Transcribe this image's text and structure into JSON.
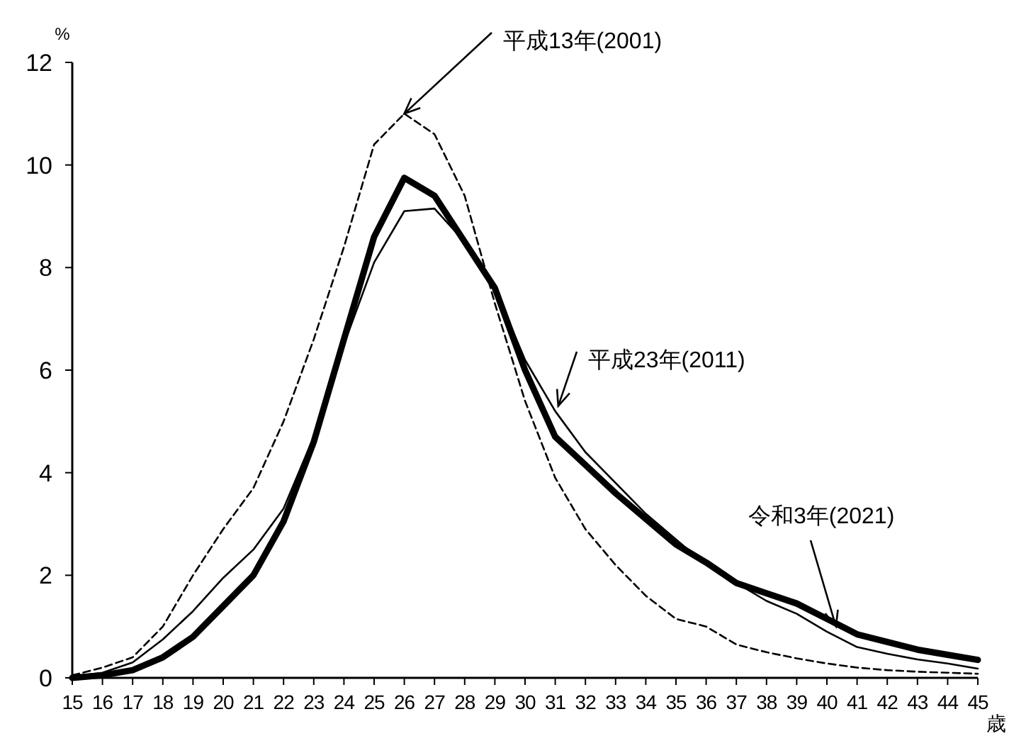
{
  "chart_data": {
    "type": "line",
    "ylabel": "%",
    "xlabel": "歳",
    "xlim": [
      15,
      45
    ],
    "ylim": [
      0,
      12
    ],
    "xticks": [
      15,
      16,
      17,
      18,
      19,
      20,
      21,
      22,
      23,
      24,
      25,
      26,
      27,
      28,
      29,
      30,
      31,
      32,
      33,
      34,
      35,
      36,
      37,
      38,
      39,
      40,
      41,
      42,
      43,
      44,
      45
    ],
    "yticks": [
      0,
      2,
      4,
      6,
      8,
      10,
      12
    ],
    "x": [
      15,
      16,
      17,
      18,
      19,
      20,
      21,
      22,
      23,
      24,
      25,
      26,
      27,
      28,
      29,
      30,
      31,
      32,
      33,
      34,
      35,
      36,
      37,
      38,
      39,
      40,
      41,
      42,
      43,
      44,
      45
    ],
    "series": [
      {
        "color": "#000000",
        "line_style": "dashed",
        "values": [
          0.05,
          0.2,
          0.4,
          1.0,
          2.0,
          2.9,
          3.7,
          5.0,
          6.6,
          8.4,
          10.4,
          11.0,
          10.6,
          9.4,
          7.3,
          5.4,
          3.9,
          2.9,
          2.2,
          1.6,
          1.15,
          1.0,
          0.65,
          0.5,
          0.38,
          0.28,
          0.2,
          0.15,
          0.12,
          0.1,
          0.08
        ]
      },
      {
        "color": "#000000",
        "line_style": "solid",
        "values": [
          0.03,
          0.1,
          0.3,
          0.75,
          1.3,
          1.95,
          2.5,
          3.3,
          4.7,
          6.5,
          8.1,
          9.1,
          9.15,
          8.5,
          7.6,
          6.2,
          5.2,
          4.4,
          3.8,
          3.2,
          2.7,
          2.2,
          1.85,
          1.5,
          1.25,
          0.9,
          0.6,
          0.47,
          0.36,
          0.28,
          0.18
        ]
      },
      {
        "color": "#000000",
        "line_style": "solid",
        "values": [
          0.0,
          0.05,
          0.15,
          0.4,
          0.8,
          1.4,
          2.0,
          3.05,
          4.6,
          6.6,
          8.6,
          9.75,
          9.4,
          8.5,
          7.6,
          6.0,
          4.7,
          4.15,
          3.6,
          3.1,
          2.6,
          2.25,
          1.85,
          1.65,
          1.45,
          1.15,
          0.85,
          0.7,
          0.55,
          0.45,
          0.35
        ]
      }
    ],
    "annotations": [
      {
        "text": "平成13年(2001)",
        "x": 26,
        "y": 11.0
      },
      {
        "text": "平成23年(2011)",
        "x": 31.1,
        "y": 5.3
      },
      {
        "text": "令和3年(2021)",
        "x": 40.3,
        "y": 1.0
      }
    ]
  }
}
